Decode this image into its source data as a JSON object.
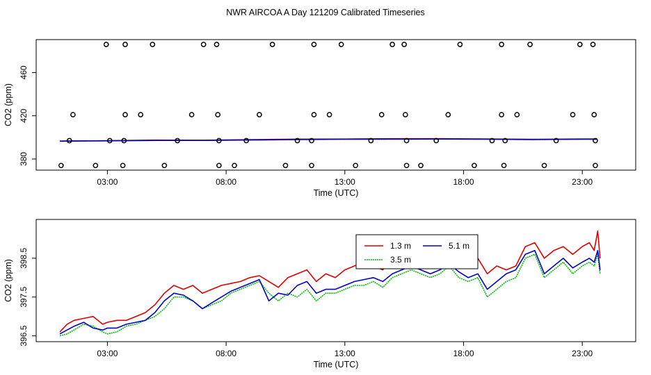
{
  "title": "NWR AIRCOA A  Day 121209  Calibrated Timeseries",
  "colors": {
    "red": "#dd0000",
    "green": "#00bb00",
    "blue": "#0000cc",
    "axis": "#000000"
  },
  "chart_data": [
    {
      "type": "scatter",
      "xlabel": "Time (UTC)",
      "ylabel": "CO2 (ppm)",
      "xlim": [
        0.0,
        25.25
      ],
      "ylim": [
        369.7,
        490.5
      ],
      "xticks": [
        3,
        8,
        13,
        18,
        23
      ],
      "xtick_labels": [
        "03:00",
        "08:00",
        "13:00",
        "18:00",
        "23:00"
      ],
      "yticks": [
        380,
        420,
        460
      ],
      "ytick_labels": [
        "380",
        "420",
        "460"
      ],
      "points": {
        "x": [
          2.95,
          3.75,
          4.9,
          7.05,
          7.6,
          9.95,
          11.7,
          12.85,
          15.0,
          15.5,
          17.85,
          19.6,
          20.8,
          22.9,
          23.45,
          1.55,
          3.75,
          4.4,
          6.55,
          7.65,
          9.4,
          11.7,
          12.35,
          14.55,
          15.55,
          17.35,
          19.6,
          20.25,
          22.6,
          23.5,
          1.4,
          3.1,
          3.7,
          5.95,
          7.7,
          8.85,
          11.0,
          11.6,
          14.1,
          15.6,
          16.85,
          19.2,
          19.75,
          21.9,
          23.55,
          1.05,
          2.5,
          3.65,
          5.4,
          7.7,
          8.35,
          10.5,
          11.6,
          13.45,
          15.6,
          16.2,
          18.45,
          19.7,
          21.4,
          23.55
        ],
        "y": [
          486,
          486,
          486,
          486,
          486,
          486,
          486,
          486,
          486,
          486,
          486,
          486,
          486,
          486,
          486,
          421,
          421,
          421,
          421,
          421,
          421,
          421,
          421,
          421,
          421,
          421,
          421,
          421,
          421,
          421,
          397,
          397,
          397,
          397,
          397,
          397,
          397,
          397,
          397,
          397,
          397,
          397,
          397,
          397,
          397,
          374,
          374,
          374,
          374,
          374,
          374,
          374,
          374,
          374,
          374,
          374,
          374,
          374,
          374,
          374
        ]
      },
      "series": [
        {
          "name": "1.3 m",
          "color": "#dd0000",
          "x": [
            1.0,
            3.0,
            5.0,
            7.0,
            9.0,
            11.0,
            13.0,
            15.0,
            17.0,
            19.0,
            21.0,
            23.0,
            23.6
          ],
          "y": [
            396.6,
            397.0,
            397.5,
            397.4,
            397.9,
            398.4,
            398.5,
            398.8,
            398.8,
            398.6,
            398.2,
            398.6,
            398.6
          ]
        },
        {
          "name": "3.5 m",
          "color": "#00bb00",
          "x": [
            1.0,
            3.0,
            5.0,
            7.0,
            9.0,
            11.0,
            13.0,
            15.0,
            17.0,
            19.0,
            21.0,
            23.0,
            23.6
          ],
          "y": [
            396.5,
            396.8,
            397.2,
            397.2,
            397.6,
            398.0,
            398.2,
            398.3,
            398.4,
            398.3,
            398.0,
            398.3,
            398.3
          ]
        },
        {
          "name": "5.1 m",
          "color": "#0000cc",
          "x": [
            1.0,
            3.0,
            5.0,
            7.0,
            9.0,
            11.0,
            13.0,
            15.0,
            17.0,
            19.0,
            21.0,
            23.0,
            23.6
          ],
          "y": [
            396.5,
            396.8,
            397.2,
            397.2,
            397.6,
            398.0,
            398.3,
            398.4,
            398.5,
            398.3,
            398.0,
            398.3,
            398.3
          ]
        }
      ]
    },
    {
      "type": "line",
      "xlabel": "Time (UTC)",
      "ylabel": "CO2 (ppm)",
      "xlim": [
        0.0,
        25.25
      ],
      "ylim": [
        396.35,
        399.5
      ],
      "xticks": [
        3,
        8,
        13,
        18,
        23
      ],
      "xtick_labels": [
        "03:00",
        "08:00",
        "13:00",
        "18:00",
        "23:00"
      ],
      "yticks": [
        396.5,
        397.5,
        398.5
      ],
      "ytick_labels": [
        "396.5",
        "397.5",
        "398.5"
      ],
      "legend": {
        "position": "top-right",
        "entries": [
          "1.3 m",
          "3.5 m",
          "5.1 m"
        ]
      },
      "series": [
        {
          "name": "1.3 m",
          "color": "#dd0000",
          "x": [
            1.0,
            1.3,
            1.6,
            2.0,
            2.4,
            2.8,
            3.0,
            3.4,
            3.8,
            4.2,
            4.6,
            5.0,
            5.4,
            5.8,
            6.2,
            6.6,
            7.0,
            7.4,
            7.8,
            8.2,
            8.6,
            9.0,
            9.4,
            9.8,
            10.2,
            10.6,
            11.0,
            11.4,
            11.8,
            12.2,
            12.6,
            13.0,
            13.4,
            13.8,
            14.2,
            14.6,
            15.0,
            15.4,
            15.8,
            16.2,
            16.6,
            17.0,
            17.4,
            17.8,
            18.2,
            18.6,
            19.0,
            19.4,
            19.8,
            20.2,
            20.6,
            21.0,
            21.4,
            21.8,
            22.2,
            22.6,
            23.0,
            23.3,
            23.5,
            23.65,
            23.75
          ],
          "y": [
            396.6,
            396.8,
            396.9,
            396.95,
            397.0,
            396.8,
            396.85,
            396.9,
            396.9,
            397.0,
            397.1,
            397.3,
            397.6,
            397.8,
            397.7,
            397.8,
            397.6,
            397.7,
            397.8,
            397.85,
            397.9,
            398.0,
            398.05,
            397.9,
            397.75,
            398.0,
            398.1,
            398.2,
            397.9,
            398.1,
            398.0,
            398.2,
            398.3,
            398.4,
            398.3,
            398.2,
            398.5,
            398.6,
            398.6,
            398.5,
            398.45,
            398.6,
            398.7,
            398.5,
            398.4,
            398.5,
            398.1,
            398.3,
            398.2,
            398.3,
            398.8,
            398.9,
            398.5,
            398.7,
            398.8,
            398.6,
            398.8,
            398.9,
            398.7,
            399.2,
            398.5
          ]
        },
        {
          "name": "3.5 m",
          "color": "#00bb00",
          "x": [
            1.0,
            1.3,
            1.6,
            2.0,
            2.4,
            2.8,
            3.0,
            3.4,
            3.8,
            4.2,
            4.6,
            5.0,
            5.4,
            5.8,
            6.2,
            6.6,
            7.0,
            7.4,
            7.8,
            8.2,
            8.6,
            9.0,
            9.4,
            9.8,
            10.2,
            10.6,
            11.0,
            11.4,
            11.8,
            12.2,
            12.6,
            13.0,
            13.4,
            13.8,
            14.2,
            14.6,
            15.0,
            15.4,
            15.8,
            16.2,
            16.6,
            17.0,
            17.4,
            17.8,
            18.2,
            18.6,
            19.0,
            19.4,
            19.8,
            20.2,
            20.6,
            21.0,
            21.4,
            21.8,
            22.2,
            22.6,
            23.0,
            23.3,
            23.5,
            23.65,
            23.75
          ],
          "y": [
            396.5,
            396.55,
            396.65,
            396.8,
            396.75,
            396.6,
            396.55,
            396.6,
            396.75,
            396.8,
            396.9,
            397.0,
            397.2,
            397.5,
            397.5,
            397.4,
            397.2,
            397.3,
            397.4,
            397.6,
            397.7,
            397.8,
            397.9,
            397.6,
            397.4,
            397.6,
            397.5,
            397.7,
            397.4,
            397.6,
            397.6,
            397.7,
            397.8,
            397.8,
            397.9,
            397.75,
            398.0,
            398.1,
            398.2,
            398.1,
            398.0,
            398.1,
            398.3,
            398.0,
            397.9,
            398.0,
            397.5,
            397.7,
            397.9,
            398.0,
            398.5,
            398.6,
            398.0,
            398.2,
            398.4,
            398.1,
            398.3,
            398.4,
            398.3,
            398.6,
            398.1
          ]
        },
        {
          "name": "5.1 m",
          "color": "#0000cc",
          "x": [
            1.0,
            1.3,
            1.6,
            2.0,
            2.4,
            2.8,
            3.0,
            3.4,
            3.8,
            4.2,
            4.6,
            5.0,
            5.4,
            5.8,
            6.2,
            6.6,
            7.0,
            7.4,
            7.8,
            8.2,
            8.6,
            9.0,
            9.4,
            9.8,
            10.2,
            10.6,
            11.0,
            11.4,
            11.8,
            12.2,
            12.6,
            13.0,
            13.4,
            13.8,
            14.2,
            14.6,
            15.0,
            15.4,
            15.8,
            16.2,
            16.6,
            17.0,
            17.4,
            17.8,
            18.2,
            18.6,
            19.0,
            19.4,
            19.8,
            20.2,
            20.6,
            21.0,
            21.4,
            21.8,
            22.2,
            22.6,
            23.0,
            23.3,
            23.5,
            23.65,
            23.75
          ],
          "y": [
            396.55,
            396.65,
            396.75,
            396.85,
            396.7,
            396.65,
            396.7,
            396.7,
            396.8,
            396.85,
            396.9,
            397.1,
            397.4,
            397.6,
            397.55,
            397.4,
            397.2,
            397.35,
            397.5,
            397.65,
            397.75,
            397.85,
            397.95,
            397.4,
            397.6,
            397.55,
            397.8,
            397.9,
            397.6,
            397.7,
            397.7,
            397.8,
            397.9,
            397.95,
            398.0,
            397.9,
            398.1,
            398.2,
            398.3,
            398.2,
            398.1,
            398.2,
            398.35,
            398.15,
            398.0,
            398.1,
            397.7,
            397.9,
            398.1,
            398.2,
            398.6,
            398.7,
            398.1,
            398.3,
            398.5,
            398.25,
            398.4,
            398.5,
            398.4,
            398.7,
            398.2
          ]
        }
      ]
    }
  ]
}
